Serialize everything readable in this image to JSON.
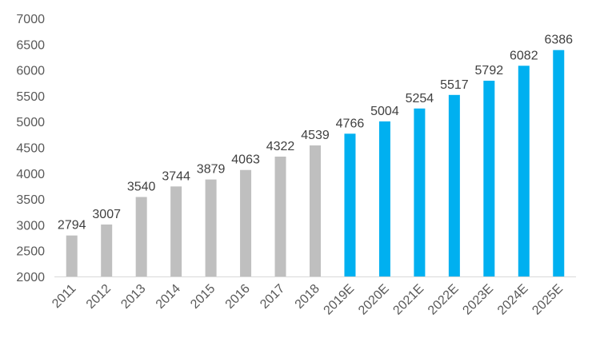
{
  "chart_data": {
    "type": "bar",
    "title": "",
    "xlabel": "",
    "ylabel": "",
    "ylim": [
      2000,
      7000
    ],
    "yticks": [
      2000,
      2500,
      3000,
      3500,
      4000,
      4500,
      5000,
      5500,
      6000,
      6500,
      7000
    ],
    "grid": false,
    "legend": "none",
    "categories": [
      "2011",
      "2012",
      "2013",
      "2014",
      "2015",
      "2016",
      "2017",
      "2018",
      "2019E",
      "2020E",
      "2021E",
      "2022E",
      "2023E",
      "2024E",
      "2025E"
    ],
    "values": [
      2794,
      3007,
      3540,
      3744,
      3879,
      4063,
      4322,
      4539,
      4766,
      5004,
      5254,
      5517,
      5792,
      6082,
      6386
    ],
    "data_labels": [
      "2794",
      "3007",
      "3540",
      "3744",
      "3879",
      "4063",
      "4322",
      "4539",
      "4766",
      "5004",
      "5254",
      "5517",
      "5792",
      "6082",
      "6386"
    ],
    "colors": {
      "actual": "#BFBFBF",
      "estimate": "#00B0F0",
      "axis": "#D9D9D9"
    },
    "actual_count": 8
  }
}
